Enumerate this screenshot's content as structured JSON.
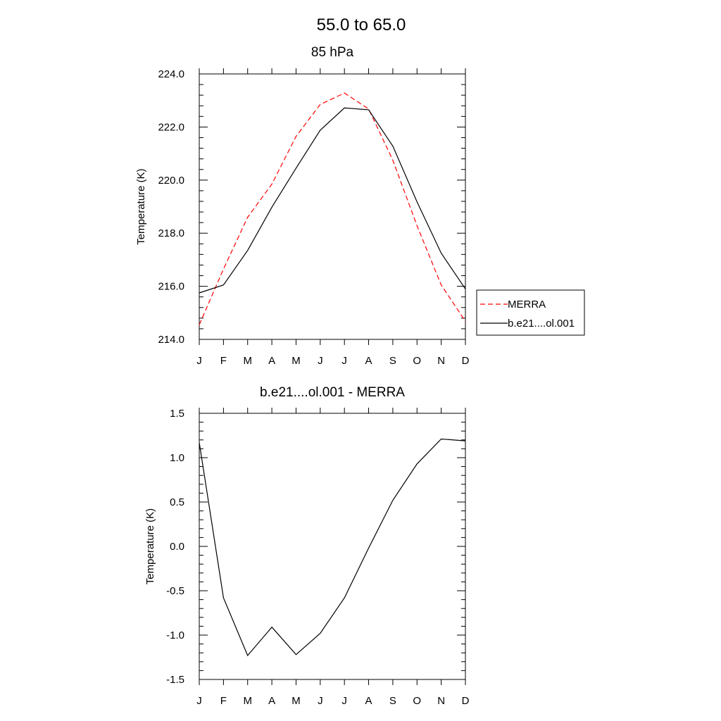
{
  "page": {
    "title": "55.0 to  65.0"
  },
  "chart_data": [
    {
      "type": "line",
      "title": "85 hPa",
      "xlabel": "",
      "ylabel": "Temperature (K)",
      "categories": [
        "J",
        "F",
        "M",
        "A",
        "M",
        "J",
        "J",
        "A",
        "S",
        "O",
        "N",
        "D"
      ],
      "ylim": [
        214.0,
        224.0
      ],
      "yticks": [
        "214.0",
        "216.0",
        "218.0",
        "220.0",
        "222.0",
        "224.0"
      ],
      "grid": false,
      "legend": "right",
      "series": [
        {
          "name": "MERRA",
          "color": "#ff0000",
          "dash": true,
          "values": [
            214.55,
            216.65,
            218.6,
            219.85,
            221.65,
            222.85,
            223.28,
            222.68,
            220.75,
            218.28,
            216.05,
            214.68
          ]
        },
        {
          "name": "b.e21....ol.001",
          "color": "#000000",
          "dash": false,
          "values": [
            215.75,
            216.05,
            217.35,
            218.98,
            220.45,
            221.88,
            222.72,
            222.65,
            221.28,
            219.18,
            217.25,
            215.9
          ]
        }
      ]
    },
    {
      "type": "line",
      "title": "b.e21....ol.001 - MERRA",
      "xlabel": "",
      "ylabel": "Temperature (K)",
      "categories": [
        "J",
        "F",
        "M",
        "A",
        "M",
        "J",
        "J",
        "A",
        "S",
        "O",
        "N",
        "D"
      ],
      "ylim": [
        -1.5,
        1.5
      ],
      "yticks": [
        "-1.5",
        "-1.0",
        "-0.5",
        "0.0",
        "0.5",
        "1.0",
        "1.5"
      ],
      "grid": false,
      "series": [
        {
          "color": "#000000",
          "dash": false,
          "values": [
            1.17,
            -0.58,
            -1.23,
            -0.91,
            -1.22,
            -0.98,
            -0.58,
            -0.02,
            0.52,
            0.93,
            1.21,
            1.19
          ]
        }
      ]
    }
  ]
}
